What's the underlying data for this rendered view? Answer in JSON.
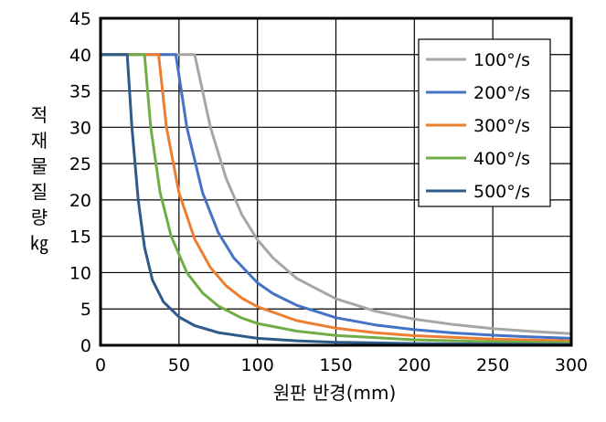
{
  "chart_data": {
    "type": "line",
    "xlabel": "원판 반경(mm)",
    "ylabel_chars": [
      "적",
      "재",
      "물",
      "질",
      "량",
      "㎏"
    ],
    "xlim": [
      0,
      300
    ],
    "ylim": [
      0,
      45
    ],
    "x_ticks": [
      "0",
      "50",
      "100",
      "150",
      "200",
      "250",
      "300"
    ],
    "y_ticks": [
      "0",
      "5",
      "10",
      "15",
      "20",
      "25",
      "30",
      "35",
      "40",
      "45"
    ],
    "grid": true,
    "legend_position": "top-right",
    "series": [
      {
        "name": "100°/s",
        "color": "#a6a6a6",
        "points": [
          [
            0,
            40
          ],
          [
            60,
            40
          ],
          [
            70,
            30
          ],
          [
            80,
            23
          ],
          [
            90,
            18
          ],
          [
            100,
            14.5
          ],
          [
            110,
            12
          ],
          [
            125,
            9.2
          ],
          [
            150,
            6.4
          ],
          [
            175,
            4.7
          ],
          [
            200,
            3.6
          ],
          [
            225,
            2.85
          ],
          [
            250,
            2.3
          ],
          [
            275,
            1.9
          ],
          [
            300,
            1.6
          ]
        ]
      },
      {
        "name": "200°/s",
        "color": "#4472c4",
        "points": [
          [
            0,
            40
          ],
          [
            48,
            40
          ],
          [
            55,
            30
          ],
          [
            65,
            21
          ],
          [
            75,
            15.5
          ],
          [
            85,
            12
          ],
          [
            100,
            8.6
          ],
          [
            110,
            7.1
          ],
          [
            125,
            5.5
          ],
          [
            150,
            3.8
          ],
          [
            175,
            2.8
          ],
          [
            200,
            2.15
          ],
          [
            225,
            1.7
          ],
          [
            250,
            1.38
          ],
          [
            275,
            1.14
          ],
          [
            300,
            0.96
          ]
        ]
      },
      {
        "name": "300°/s",
        "color": "#ed7d31",
        "points": [
          [
            0,
            40
          ],
          [
            37,
            40
          ],
          [
            42,
            30
          ],
          [
            50,
            21
          ],
          [
            60,
            14.6
          ],
          [
            70,
            10.7
          ],
          [
            80,
            8.2
          ],
          [
            90,
            6.5
          ],
          [
            100,
            5.3
          ],
          [
            125,
            3.4
          ],
          [
            150,
            2.35
          ],
          [
            175,
            1.73
          ],
          [
            200,
            1.32
          ],
          [
            250,
            0.85
          ],
          [
            300,
            0.59
          ]
        ]
      },
      {
        "name": "400°/s",
        "color": "#70ad47",
        "points": [
          [
            0,
            40
          ],
          [
            28,
            40
          ],
          [
            32,
            30
          ],
          [
            38,
            21
          ],
          [
            45,
            15
          ],
          [
            55,
            10
          ],
          [
            65,
            7.2
          ],
          [
            75,
            5.4
          ],
          [
            90,
            3.75
          ],
          [
            100,
            3
          ],
          [
            125,
            1.95
          ],
          [
            150,
            1.35
          ],
          [
            200,
            0.76
          ],
          [
            250,
            0.49
          ],
          [
            300,
            0.34
          ]
        ]
      },
      {
        "name": "500°/s",
        "color": "#2e5b8a",
        "points": [
          [
            0,
            40
          ],
          [
            17,
            40
          ],
          [
            20,
            30
          ],
          [
            24,
            20
          ],
          [
            28,
            13.5
          ],
          [
            33,
            9
          ],
          [
            40,
            6
          ],
          [
            50,
            3.9
          ],
          [
            60,
            2.7
          ],
          [
            75,
            1.75
          ],
          [
            100,
            0.95
          ],
          [
            125,
            0.61
          ],
          [
            150,
            0.42
          ],
          [
            200,
            0.24
          ],
          [
            250,
            0.15
          ],
          [
            300,
            0.11
          ]
        ]
      }
    ]
  }
}
